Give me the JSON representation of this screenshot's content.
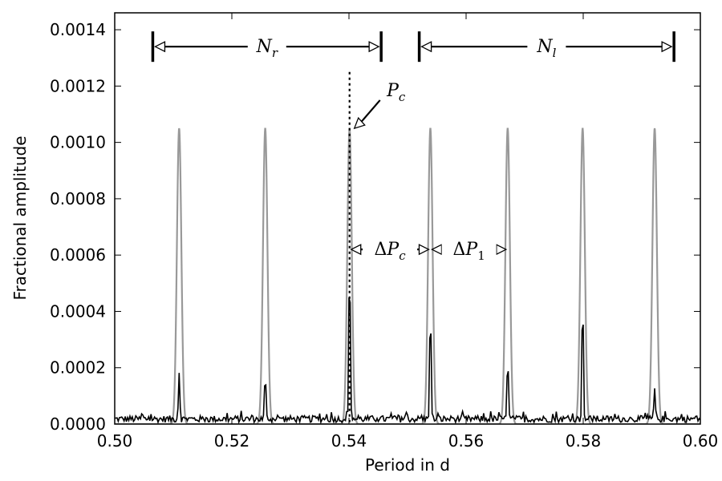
{
  "chart_data": {
    "type": "line",
    "xlabel": "Period in d",
    "ylabel": "Fractional amplitude",
    "xlim": [
      0.5,
      0.6
    ],
    "ylim": [
      0.0,
      0.00146
    ],
    "xticks": [
      "0.50",
      "0.52",
      "0.54",
      "0.56",
      "0.58",
      "0.60"
    ],
    "xtick_values": [
      0.5,
      0.52,
      0.54,
      0.56,
      0.58,
      0.6
    ],
    "yticks": [
      "0.0000",
      "0.0002",
      "0.0004",
      "0.0006",
      "0.0008",
      "0.0010",
      "0.0012",
      "0.0014"
    ],
    "ytick_values": [
      0.0,
      0.0002,
      0.0004,
      0.0006,
      0.0008,
      0.001,
      0.0012,
      0.0014
    ],
    "grid": false,
    "series": [
      {
        "color": "#999999",
        "peak_periods": [
          0.511,
          0.5257,
          0.5401,
          0.5539,
          0.5671,
          0.5799,
          0.5922
        ],
        "peak_amplitudes": [
          0.00105,
          0.00105,
          0.00105,
          0.00105,
          0.00105,
          0.00105,
          0.00105
        ]
      },
      {
        "color": "#000000",
        "peak_periods": [
          0.511,
          0.5257,
          0.5401,
          0.5539,
          0.5671,
          0.5799,
          0.5922
        ],
        "peak_amplitudes": [
          0.00017,
          0.00016,
          0.0006,
          0.00042,
          0.00023,
          0.00046,
          0.00011
        ],
        "noise_level": 3e-05
      }
    ],
    "annotations": {
      "Pc_line_x": 0.5401,
      "Pc_line_top": 0.00125,
      "Pc_label": {
        "main": "P",
        "sub": "c"
      },
      "Nr": {
        "x_start": 0.5065,
        "x_end": 0.5455,
        "y": 0.00134,
        "label": {
          "main": "N",
          "sub": "r"
        }
      },
      "Nl": {
        "x_start": 0.552,
        "x_end": 0.5955,
        "y": 0.00134,
        "label": {
          "main": "N",
          "sub": "l"
        }
      },
      "dPc": {
        "x_start": 0.5401,
        "x_end": 0.5539,
        "y": 0.00062,
        "label": {
          "delta": "Δ",
          "main": "P",
          "sub": "c"
        }
      },
      "dP1": {
        "x_start": 0.5539,
        "x_end": 0.5671,
        "y": 0.00062,
        "label": {
          "delta": "Δ",
          "main": "P",
          "sub": "1"
        }
      }
    }
  }
}
